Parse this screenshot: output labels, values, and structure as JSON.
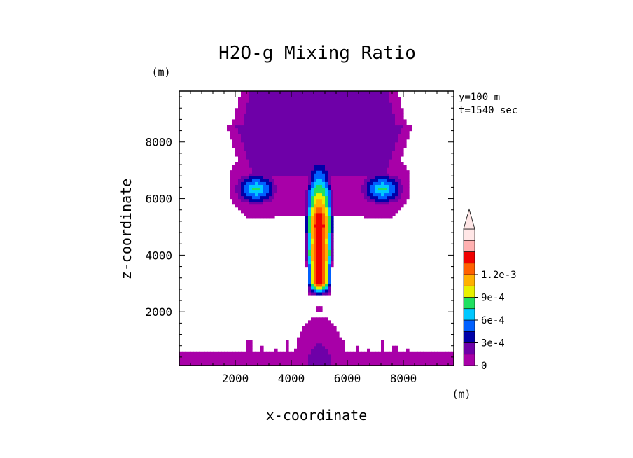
{
  "chart_data": {
    "type": "heatmap",
    "title": "H2O-g Mixing Ratio",
    "xlabel": "x-coordinate",
    "ylabel": "z-coordinate",
    "x_unit": "(m)",
    "y_unit": "(m)",
    "xlim": [
      0,
      9800
    ],
    "ylim": [
      100,
      9800
    ],
    "xticks": [
      {
        "value": 2000,
        "label": "2000"
      },
      {
        "value": 4000,
        "label": "4000"
      },
      {
        "value": 6000,
        "label": "6000"
      },
      {
        "value": 8000,
        "label": "8000"
      }
    ],
    "yticks": [
      {
        "value": 2000,
        "label": "2000"
      },
      {
        "value": 4000,
        "label": "4000"
      },
      {
        "value": 6000,
        "label": "6000"
      },
      {
        "value": 8000,
        "label": "8000"
      }
    ],
    "annotations": [
      "y=100 m",
      "t=1540 sec"
    ],
    "colorbar": {
      "levels": [
        0,
        0.00015,
        0.0003,
        0.00045,
        0.0006,
        0.00075,
        0.0009,
        0.00105,
        0.0012,
        0.00135
      ],
      "colors": [
        "#a800a8",
        "#6e00a8",
        "#0000a8",
        "#0060ff",
        "#00c8ff",
        "#20e060",
        "#e8f000",
        "#ffb000",
        "#ff6000",
        "#f00000",
        "#ffb0b0",
        "#ffe6e6"
      ],
      "labels": [
        {
          "value": 0,
          "label": "0"
        },
        {
          "value": 0.0003,
          "label": "3e-4"
        },
        {
          "value": 0.0006,
          "label": "6e-4"
        },
        {
          "value": 0.0009,
          "label": "9e-4"
        },
        {
          "value": 0.0012,
          "label": "1.2e-3"
        }
      ]
    },
    "features": [
      {
        "name": "updraft column",
        "x_center": 5000,
        "z_range": [
          2600,
          7600
        ],
        "max_value": 0.00135
      },
      {
        "name": "left anvil lobe",
        "x_center": 2900,
        "z_range": [
          5600,
          8800
        ],
        "max_value": 0.00075
      },
      {
        "name": "right anvil lobe",
        "x_center": 7100,
        "z_range": [
          5600,
          8800
        ],
        "max_value": 0.00075
      },
      {
        "name": "lower dome",
        "x_center": 5000,
        "z_range": [
          100,
          1850
        ],
        "max_value": 0.00015
      }
    ]
  }
}
